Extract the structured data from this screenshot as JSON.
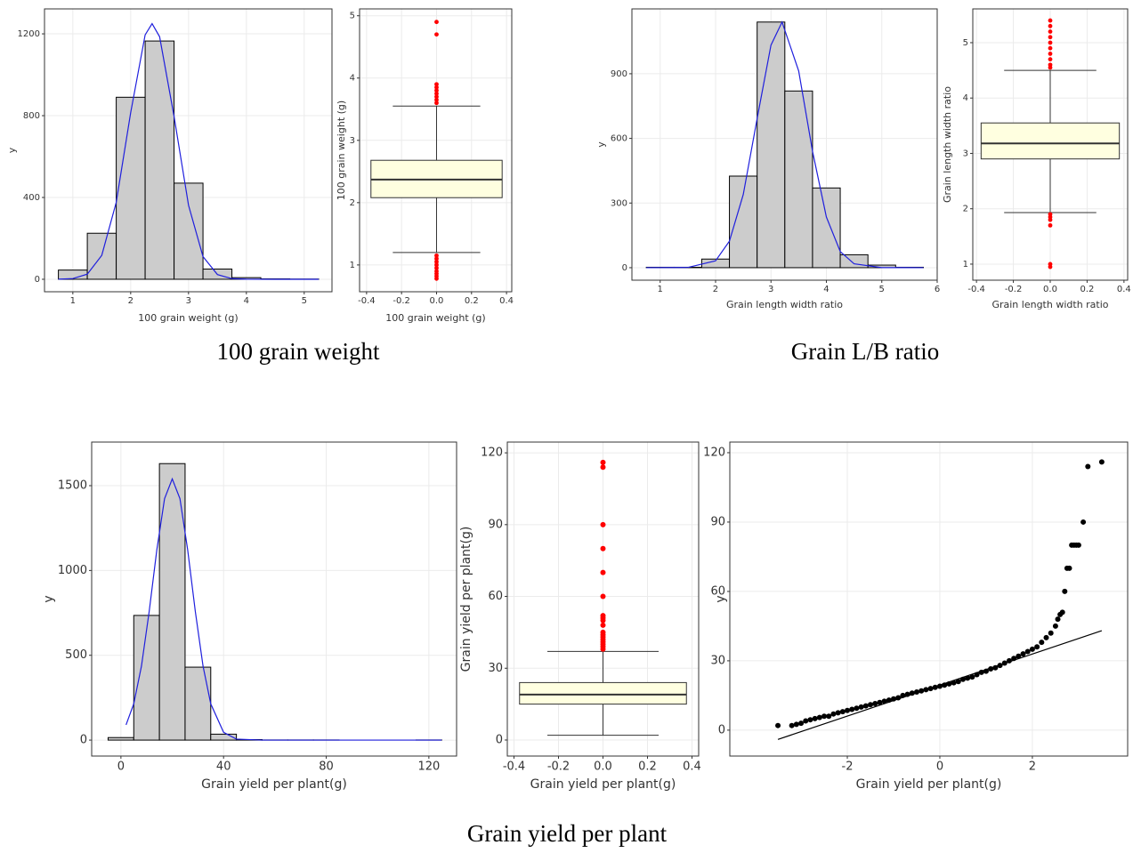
{
  "chart_data": [
    {
      "type": "histogram",
      "xlabel": "100 grain weight (g)",
      "ylabel": "y",
      "bins": [
        0.75,
        1.25,
        1.75,
        2.25,
        2.75,
        3.25,
        3.75,
        4.25,
        4.75,
        5.25
      ],
      "counts": [
        45,
        225,
        890,
        1165,
        470,
        50,
        8,
        2,
        1
      ],
      "color": "#cccccc",
      "curve": {
        "color": "#1f1fdd",
        "x": [
          0.75,
          1.0,
          1.25,
          1.5,
          1.75,
          2.0,
          2.25,
          2.37,
          2.5,
          2.75,
          3.0,
          3.25,
          3.5,
          3.75,
          4.0,
          4.5,
          5.25
        ],
        "y": [
          0.3,
          3.5,
          25,
          117,
          376,
          815,
          1195,
          1250,
          1186,
          796,
          362,
          111,
          23,
          3,
          0.3,
          0,
          0
        ]
      },
      "xlim": [
        0.51,
        5.48
      ],
      "ylim": [
        -61,
        1322
      ],
      "xticks": [
        1,
        2,
        3,
        4,
        5
      ],
      "yticks": [
        0,
        400,
        800,
        1200
      ],
      "grid": true
    },
    {
      "type": "box",
      "xlabel": "100 grain weight (g)",
      "ylabel": "100 grain weight (g)",
      "box": {
        "lower_whisker": 1.2,
        "q1": 2.08,
        "median": 2.37,
        "q3": 2.68,
        "upper_whisker": 3.55
      },
      "outliers": [
        0.78,
        0.82,
        0.86,
        0.9,
        0.95,
        1.0,
        1.05,
        1.1,
        1.15,
        3.6,
        3.65,
        3.7,
        3.75,
        3.8,
        3.85,
        3.9,
        4.7,
        4.9
      ],
      "fill": "#ffffe0",
      "outlier_color": "#ff0000",
      "xlim": [
        -0.44,
        0.43
      ],
      "ylim": [
        0.57,
        5.11
      ],
      "xticks": [
        -0.4,
        -0.2,
        {
          "value": 0,
          "label": "0.0"
        },
        0.2,
        0.4
      ],
      "yticks": [
        1,
        2,
        3,
        4,
        5
      ],
      "grid": true
    },
    {
      "type": "histogram",
      "xlabel": "Grain length width ratio",
      "ylabel": "y",
      "bins": [
        0.75,
        1.25,
        1.75,
        2.25,
        2.75,
        3.25,
        3.75,
        4.25,
        4.75,
        5.25,
        5.75
      ],
      "counts": [
        2,
        2,
        40,
        425,
        1140,
        820,
        370,
        60,
        12,
        2
      ],
      "color": "#cccccc",
      "curve": {
        "color": "#1f1fdd",
        "x": [
          0.75,
          1.5,
          2.0,
          2.25,
          2.5,
          2.75,
          3.0,
          3.2,
          3.5,
          3.75,
          4.0,
          4.25,
          4.5,
          5.0,
          5.75
        ],
        "y": [
          0,
          1,
          32,
          123,
          340,
          692,
          1033,
          1140,
          913,
          540,
          235,
          75,
          18,
          0.4,
          0
        ]
      },
      "xlim": [
        0.49,
        6
      ],
      "ylim": [
        -58,
        1201
      ],
      "xticks": [
        1,
        2,
        3,
        4,
        5,
        6
      ],
      "yticks": [
        0,
        300,
        600,
        900
      ],
      "grid": true
    },
    {
      "type": "box",
      "xlabel": "Grain length width ratio",
      "ylabel": "Grain length width ratio",
      "box": {
        "lower_whisker": 1.93,
        "q1": 2.9,
        "median": 3.18,
        "q3": 3.55,
        "upper_whisker": 4.5
      },
      "outliers": [
        0.95,
        1.0,
        1.7,
        1.8,
        1.85,
        1.9,
        4.55,
        4.6,
        4.7,
        4.8,
        4.9,
        5.0,
        5.1,
        5.2,
        5.3,
        5.4
      ],
      "fill": "#ffffe0",
      "outlier_color": "#ff0000",
      "xlim": [
        -0.42,
        0.42
      ],
      "ylim": [
        0.71,
        5.61
      ],
      "xticks": [
        -0.4,
        -0.2,
        {
          "value": 0,
          "label": "0.0"
        },
        0.2,
        0.4
      ],
      "yticks": [
        1,
        2,
        3,
        4,
        5
      ],
      "grid": true
    },
    {
      "type": "histogram",
      "xlabel": "Grain yield per plant(g)",
      "ylabel": "y",
      "bins": [
        -5,
        5,
        15,
        25,
        35,
        45,
        55,
        65,
        75,
        85,
        95,
        105,
        115,
        125
      ],
      "counts": [
        15,
        735,
        1630,
        430,
        35,
        3,
        1,
        1,
        1,
        0,
        0,
        0,
        1
      ],
      "color": "#cccccc",
      "curve": {
        "color": "#1f1fdd",
        "x": [
          2,
          5,
          8,
          11,
          14,
          17,
          20,
          23,
          26,
          29,
          32,
          35,
          40,
          45,
          55,
          125
        ],
        "y": [
          90,
          214,
          436,
          757,
          1123,
          1423,
          1540,
          1423,
          1123,
          757,
          436,
          214,
          46,
          6,
          0,
          0
        ]
      },
      "xlim": [
        -11.4,
        130.8
      ],
      "ylim": [
        -94,
        1757
      ],
      "xticks": [
        0,
        40,
        80,
        120
      ],
      "yticks": [
        0,
        500,
        1000,
        1500
      ],
      "grid": true
    },
    {
      "type": "box",
      "xlabel": "Grain yield per plant(g)",
      "ylabel": "Grain yield per plant(g)",
      "box": {
        "lower_whisker": 2,
        "q1": 15,
        "median": 19,
        "q3": 24,
        "upper_whisker": 37
      },
      "outliers": [
        38,
        39,
        40,
        41,
        42,
        43,
        44,
        45,
        48,
        50,
        51,
        52,
        60,
        70,
        80,
        90,
        114,
        116
      ],
      "fill": "#ffffe0",
      "outlier_color": "#ff0000",
      "xlim": [
        -0.43,
        0.43
      ],
      "ylim": [
        -6.7,
        124.5
      ],
      "xticks": [
        -0.4,
        -0.2,
        {
          "value": 0,
          "label": "0.0"
        },
        0.2,
        0.4
      ],
      "yticks": [
        0,
        30,
        60,
        90,
        120
      ],
      "grid": true
    },
    {
      "type": "qq",
      "xlabel": "Grain yield per plant(g)",
      "ylabel": "y",
      "color": "#000000",
      "x": [
        -3.5,
        -3.2,
        -3.1,
        -3.0,
        -2.9,
        -2.8,
        -2.7,
        -2.6,
        -2.5,
        -2.4,
        -2.3,
        -2.2,
        -2.1,
        -2.0,
        -1.9,
        -1.8,
        -1.7,
        -1.6,
        -1.5,
        -1.4,
        -1.3,
        -1.2,
        -1.1,
        -1.0,
        -0.9,
        -0.8,
        -0.7,
        -0.6,
        -0.5,
        -0.4,
        -0.3,
        -0.2,
        -0.1,
        0,
        0.1,
        0.2,
        0.3,
        0.4,
        0.5,
        0.6,
        0.7,
        0.8,
        0.9,
        1.0,
        1.1,
        1.2,
        1.3,
        1.4,
        1.5,
        1.6,
        1.7,
        1.8,
        1.9,
        2.0,
        2.1,
        2.2,
        2.3,
        2.4,
        2.5,
        2.55,
        2.6,
        2.65,
        2.7,
        2.75,
        2.8,
        2.85,
        2.9,
        2.95,
        3.0,
        3.1,
        3.2,
        3.5
      ],
      "y": [
        2,
        2,
        2.5,
        3,
        4,
        4.5,
        5,
        5.5,
        6,
        6,
        7,
        7.5,
        8,
        8.5,
        9,
        9.5,
        10,
        10.5,
        11,
        11.5,
        12,
        12.5,
        13,
        13.5,
        14,
        15,
        15.5,
        16,
        16.5,
        17,
        17.5,
        18,
        18.5,
        19,
        19.5,
        20,
        20.5,
        21,
        22,
        22.5,
        23,
        24,
        25,
        25.5,
        26.5,
        27,
        28,
        29,
        30,
        31,
        32,
        33,
        34,
        35,
        36,
        38,
        40,
        42,
        45,
        48,
        50,
        51,
        60,
        70,
        70,
        80,
        80,
        80,
        80,
        90,
        114,
        116
      ],
      "line": {
        "x": [
          -3.5,
          3.5
        ],
        "y": [
          -4,
          43
        ]
      },
      "xlim": [
        -4.54,
        4.06
      ],
      "ylim": [
        -11.2,
        124.6
      ],
      "xticks": [
        -2,
        0,
        2
      ],
      "yticks": [
        0,
        30,
        60,
        90,
        120
      ],
      "grid": true
    }
  ],
  "captions": [
    "100 grain weight",
    "Grain L/B ratio",
    "Grain yield per plant"
  ]
}
